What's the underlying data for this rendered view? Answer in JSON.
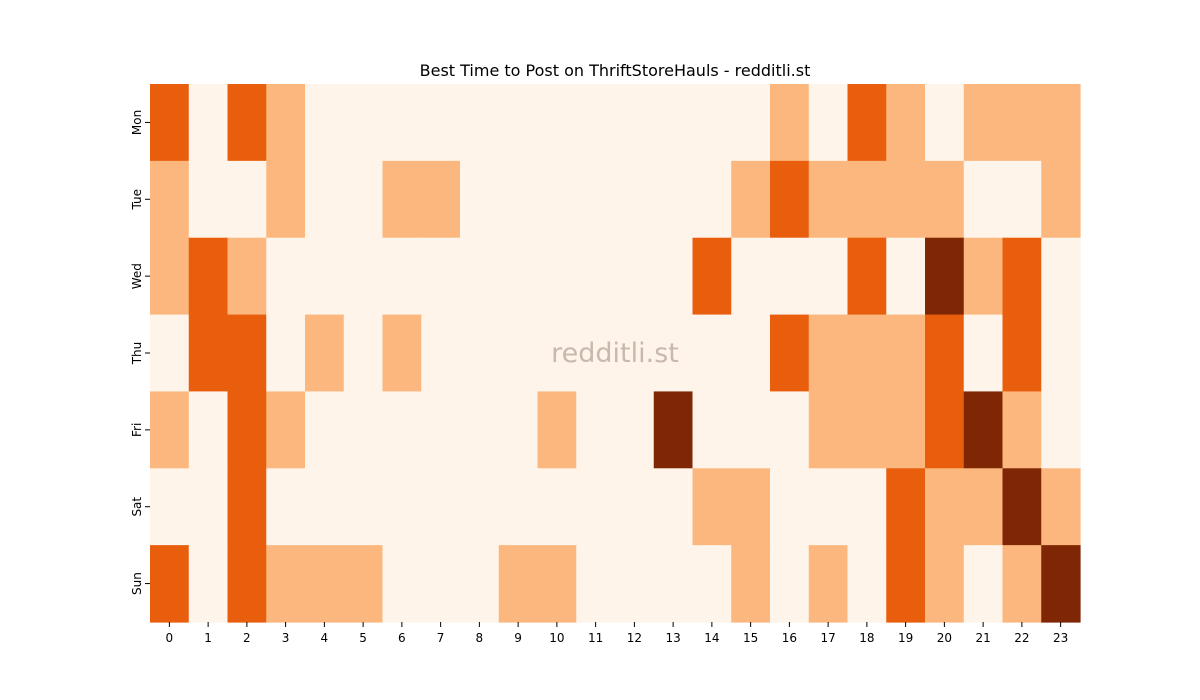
{
  "chart_data": {
    "type": "heatmap",
    "title": "Best Time to Post on ThriftStoreHauls - redditli.st",
    "watermark": "redditli.st",
    "x_labels": [
      "0",
      "1",
      "2",
      "3",
      "4",
      "5",
      "6",
      "7",
      "8",
      "9",
      "10",
      "11",
      "12",
      "13",
      "14",
      "15",
      "16",
      "17",
      "18",
      "19",
      "20",
      "21",
      "22",
      "23"
    ],
    "y_labels": [
      "Mon",
      "Tue",
      "Wed",
      "Thu",
      "Fri",
      "Sat",
      "Sun"
    ],
    "levels": [
      0,
      1,
      2,
      3
    ],
    "colors": [
      "#fef4ea",
      "#fbb77d",
      "#e95e0d",
      "#7f2704"
    ],
    "values": [
      [
        2,
        0,
        2,
        1,
        0,
        0,
        0,
        0,
        0,
        0,
        0,
        0,
        0,
        0,
        0,
        0,
        1,
        0,
        2,
        1,
        0,
        1,
        1,
        1
      ],
      [
        1,
        0,
        0,
        1,
        0,
        0,
        1,
        1,
        0,
        0,
        0,
        0,
        0,
        0,
        0,
        1,
        2,
        1,
        1,
        1,
        1,
        0,
        0,
        1
      ],
      [
        1,
        2,
        1,
        0,
        0,
        0,
        0,
        0,
        0,
        0,
        0,
        0,
        0,
        0,
        2,
        0,
        0,
        0,
        2,
        0,
        3,
        1,
        2,
        0
      ],
      [
        0,
        2,
        2,
        0,
        1,
        0,
        1,
        0,
        0,
        0,
        0,
        0,
        0,
        0,
        0,
        0,
        2,
        1,
        1,
        1,
        2,
        0,
        2,
        0
      ],
      [
        1,
        0,
        2,
        1,
        0,
        0,
        0,
        0,
        0,
        0,
        1,
        0,
        0,
        3,
        0,
        0,
        0,
        1,
        1,
        1,
        2,
        3,
        1,
        0
      ],
      [
        0,
        0,
        2,
        0,
        0,
        0,
        0,
        0,
        0,
        0,
        0,
        0,
        0,
        0,
        1,
        1,
        0,
        0,
        0,
        2,
        1,
        1,
        3,
        1
      ],
      [
        2,
        0,
        2,
        1,
        1,
        1,
        0,
        0,
        0,
        1,
        1,
        0,
        0,
        0,
        0,
        1,
        0,
        1,
        0,
        2,
        1,
        0,
        1,
        3
      ]
    ],
    "legend": "none",
    "grid": false
  }
}
